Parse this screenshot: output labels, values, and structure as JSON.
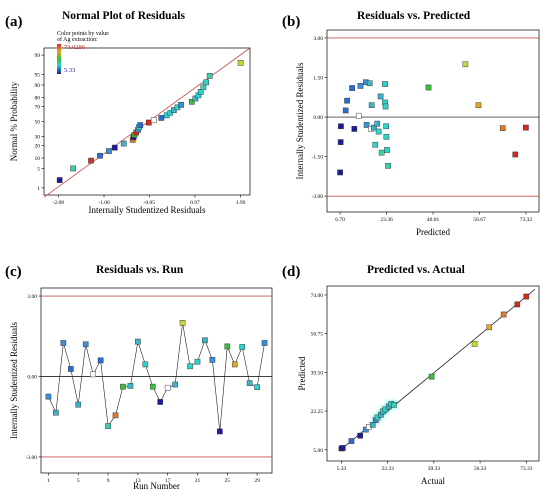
{
  "panels": [
    {
      "letter": "(a)",
      "title": "Normal Plot of Residuals"
    },
    {
      "letter": "(b)",
      "title": "Residuals vs. Predicted"
    },
    {
      "letter": "(c)",
      "title": "Residuals vs. Run"
    },
    {
      "letter": "(d)",
      "title": "Predicted vs. Actual"
    }
  ],
  "legend": {
    "title_line1": "Color points by value",
    "title_line2": "of Ag extraction:",
    "max_value": "73.0286",
    "min_value": "5.33"
  },
  "colors": {
    "low": "#1c1c99",
    "mid": "#2bd3c8",
    "green": "#3bbf3b",
    "high": "#d62a1d",
    "reference_line": "#c0504d"
  },
  "chart_data": [
    {
      "type": "scatter",
      "title": "Normal Plot of Residuals",
      "xlabel": "Internally Studentized Residuals",
      "ylabel": "Normal % Probability",
      "xlim": [
        -2.4,
        2.2
      ],
      "x_ticks": [
        "-2.08",
        "-1.06",
        "-0.05",
        "0.97",
        "1.99"
      ],
      "y_ticks": [
        "1",
        "5",
        "10",
        "20",
        "30",
        "50",
        "70",
        "80",
        "90",
        "95",
        "99"
      ],
      "fit_line": [
        [
          -2.4,
          0.4
        ],
        [
          2.2,
          99.5
        ]
      ],
      "points": [
        {
          "x": -2.05,
          "y": 2,
          "c": "#1c1c99"
        },
        {
          "x": -1.75,
          "y": 5,
          "c": "#3ccfae"
        },
        {
          "x": -1.35,
          "y": 8.5,
          "c": "#c23a2a"
        },
        {
          "x": -1.15,
          "y": 11.5,
          "c": "#2a6bd6"
        },
        {
          "x": -0.95,
          "y": 15,
          "c": "#3a8fd6"
        },
        {
          "x": -0.82,
          "y": 18,
          "c": "#1c1c99"
        },
        {
          "x": -0.62,
          "y": 22,
          "c": "#3bb3c8"
        },
        {
          "x": -0.42,
          "y": 26,
          "c": "#e07a2a"
        },
        {
          "x": -0.4,
          "y": 29,
          "c": "#1c1c99"
        },
        {
          "x": -0.38,
          "y": 32,
          "c": "#3bbf3b"
        },
        {
          "x": -0.34,
          "y": 35,
          "c": "#d62a1d"
        },
        {
          "x": -0.3,
          "y": 38.5,
          "c": "#3a8fd6"
        },
        {
          "x": -0.28,
          "y": 42,
          "c": "#2bd3c8"
        },
        {
          "x": -0.25,
          "y": 45,
          "c": "#2a6bd6"
        },
        {
          "x": -0.06,
          "y": 48.5,
          "c": "#d62a1d"
        },
        {
          "x": 0.05,
          "y": 52,
          "c": "#ffffff"
        },
        {
          "x": 0.22,
          "y": 55,
          "c": "#2a6bd6"
        },
        {
          "x": 0.34,
          "y": 58.5,
          "c": "#2bd3c8"
        },
        {
          "x": 0.42,
          "y": 62,
          "c": "#2bd3c8"
        },
        {
          "x": 0.5,
          "y": 65.5,
          "c": "#3bb3c8"
        },
        {
          "x": 0.58,
          "y": 69,
          "c": "#2bd3c8"
        },
        {
          "x": 0.66,
          "y": 72,
          "c": "#3a8fd6"
        },
        {
          "x": 0.9,
          "y": 75.5,
          "c": "#3bbf3b"
        },
        {
          "x": 0.98,
          "y": 79,
          "c": "#3bb3c8"
        },
        {
          "x": 1.05,
          "y": 82,
          "c": "#2bd3c8"
        },
        {
          "x": 1.1,
          "y": 85,
          "c": "#2bd3c8"
        },
        {
          "x": 1.16,
          "y": 88.5,
          "c": "#3ccfae"
        },
        {
          "x": 1.22,
          "y": 91.5,
          "c": "#2bd3c8"
        },
        {
          "x": 1.3,
          "y": 94.5,
          "c": "#3ccfae"
        },
        {
          "x": 1.99,
          "y": 98,
          "c": "#c8d63a"
        }
      ]
    },
    {
      "type": "scatter",
      "title": "Residuals vs. Predicted",
      "xlabel": "Predicted",
      "ylabel": "Internally Studentized Residuals",
      "xlim": [
        2,
        78
      ],
      "ylim": [
        -3.6,
        3.3
      ],
      "x_ticks": [
        6.7,
        23.36,
        40.01,
        56.67,
        73.32
      ],
      "y_ticks": [
        -3.0,
        -1.5,
        0.0,
        1.5,
        3.0
      ],
      "limit_lines": [
        3.0,
        -3.0
      ],
      "points": [
        {
          "x": 6.7,
          "y": -2.1,
          "c": "#1c1c99"
        },
        {
          "x": 6.9,
          "y": -0.95,
          "c": "#1c1c99"
        },
        {
          "x": 7.0,
          "y": -0.35,
          "c": "#1c1c99"
        },
        {
          "x": 8.7,
          "y": 0.25,
          "c": "#2a6bd6"
        },
        {
          "x": 9.2,
          "y": 0.62,
          "c": "#2a6bd6"
        },
        {
          "x": 11.0,
          "y": 1.1,
          "c": "#2a6bd6"
        },
        {
          "x": 11.8,
          "y": -0.45,
          "c": "#1c1c99"
        },
        {
          "x": 13.4,
          "y": 0.05,
          "c": "#ffffff"
        },
        {
          "x": 14.0,
          "y": 1.18,
          "c": "#3a8fd6"
        },
        {
          "x": 15.9,
          "y": 1.32,
          "c": "#3a8fd6"
        },
        {
          "x": 16.2,
          "y": -0.3,
          "c": "#3a8fd6"
        },
        {
          "x": 17.3,
          "y": 1.28,
          "c": "#3bb3c8"
        },
        {
          "x": 17.8,
          "y": -0.45,
          "c": "#ffffff"
        },
        {
          "x": 18.0,
          "y": 0.45,
          "c": "#3bb3c8"
        },
        {
          "x": 18.8,
          "y": -0.4,
          "c": "#3bb3c8"
        },
        {
          "x": 19.3,
          "y": -1.05,
          "c": "#2bd3c8"
        },
        {
          "x": 20.0,
          "y": -0.25,
          "c": "#3bb3c8"
        },
        {
          "x": 20.5,
          "y": -0.55,
          "c": "#2bd3c8"
        },
        {
          "x": 21.2,
          "y": 0.78,
          "c": "#3bb3c8"
        },
        {
          "x": 21.6,
          "y": -1.35,
          "c": "#3ccfae"
        },
        {
          "x": 22.8,
          "y": 1.25,
          "c": "#2bd3c8"
        },
        {
          "x": 22.8,
          "y": 0.55,
          "c": "#2bd3c8"
        },
        {
          "x": 23.0,
          "y": 0.4,
          "c": "#2bd3c8"
        },
        {
          "x": 23.2,
          "y": -0.35,
          "c": "#2bd3c8"
        },
        {
          "x": 23.3,
          "y": -0.75,
          "c": "#2bd3c8"
        },
        {
          "x": 23.5,
          "y": -1.25,
          "c": "#2bd3c8"
        },
        {
          "x": 23.9,
          "y": -1.85,
          "c": "#3ccfae"
        },
        {
          "x": 38.4,
          "y": 1.12,
          "c": "#3bbf3b"
        },
        {
          "x": 51.6,
          "y": 2.0,
          "c": "#c8d63a"
        },
        {
          "x": 56.3,
          "y": 0.45,
          "c": "#e0a82a"
        },
        {
          "x": 65.0,
          "y": -0.42,
          "c": "#e07a2a"
        },
        {
          "x": 69.5,
          "y": -1.42,
          "c": "#d62a1d"
        },
        {
          "x": 73.3,
          "y": -0.4,
          "c": "#d62a1d"
        }
      ]
    },
    {
      "type": "line",
      "title": "Residuals vs. Run",
      "xlabel": "Run Number",
      "ylabel": "Internally Studentized Residuals",
      "xlim": [
        0,
        31
      ],
      "ylim": [
        -3.6,
        3.3
      ],
      "x_ticks": [
        1,
        5,
        9,
        13,
        17,
        21,
        25,
        29
      ],
      "y_ticks": [
        -3.0,
        0.0,
        3.0
      ],
      "limit_lines": [
        3.0,
        -3.0
      ],
      "points": [
        {
          "x": 1,
          "y": -0.75,
          "c": "#3a8fd6"
        },
        {
          "x": 2,
          "y": -1.35,
          "c": "#3bb3c8"
        },
        {
          "x": 3,
          "y": 1.25,
          "c": "#3a8fd6"
        },
        {
          "x": 4,
          "y": 0.28,
          "c": "#2a6bd6"
        },
        {
          "x": 5,
          "y": -1.05,
          "c": "#3bb3c8"
        },
        {
          "x": 6,
          "y": 1.2,
          "c": "#3a8fd6"
        },
        {
          "x": 7,
          "y": 0.08,
          "c": "#ffffff"
        },
        {
          "x": 8,
          "y": 0.6,
          "c": "#2a6bd6"
        },
        {
          "x": 9,
          "y": -1.85,
          "c": "#3ccfae"
        },
        {
          "x": 10,
          "y": -1.45,
          "c": "#e07a2a"
        },
        {
          "x": 11,
          "y": -0.38,
          "c": "#3bbf3b"
        },
        {
          "x": 12,
          "y": -0.35,
          "c": "#3bb3c8"
        },
        {
          "x": 13,
          "y": 1.3,
          "c": "#3bb3c8"
        },
        {
          "x": 14,
          "y": 0.45,
          "c": "#2bd3c8"
        },
        {
          "x": 15,
          "y": -0.38,
          "c": "#3bbf3b"
        },
        {
          "x": 16,
          "y": -0.95,
          "c": "#1c1c99"
        },
        {
          "x": 17,
          "y": -0.42,
          "c": "#ffffff"
        },
        {
          "x": 18,
          "y": -0.3,
          "c": "#3bb3c8"
        },
        {
          "x": 19,
          "y": 2.0,
          "c": "#c8d63a"
        },
        {
          "x": 20,
          "y": 0.38,
          "c": "#2bd3c8"
        },
        {
          "x": 21,
          "y": 0.55,
          "c": "#2bd3c8"
        },
        {
          "x": 22,
          "y": 1.35,
          "c": "#3bb3c8"
        },
        {
          "x": 23,
          "y": 0.62,
          "c": "#3a8fd6"
        },
        {
          "x": 24,
          "y": -2.05,
          "c": "#1c1c99"
        },
        {
          "x": 25,
          "y": 1.12,
          "c": "#3bbf3b"
        },
        {
          "x": 26,
          "y": 0.45,
          "c": "#e0a82a"
        },
        {
          "x": 27,
          "y": 1.1,
          "c": "#2bd3c8"
        },
        {
          "x": 28,
          "y": -0.25,
          "c": "#3bb3c8"
        },
        {
          "x": 29,
          "y": -0.4,
          "c": "#2bd3c8"
        },
        {
          "x": 30,
          "y": 1.25,
          "c": "#3a8fd6"
        }
      ]
    },
    {
      "type": "scatter",
      "title": "Predicted vs. Actual",
      "xlabel": "Actual",
      "ylabel": "Predicted",
      "xlim": [
        0,
        78
      ],
      "ylim": [
        0,
        78
      ],
      "x_ticks": [
        5.33,
        22.33,
        39.33,
        56.33,
        73.33
      ],
      "y_ticks": [
        5.0,
        22.25,
        39.5,
        56.75,
        74.0
      ],
      "fit_line": [
        [
          5.0,
          5.0
        ],
        [
          76.5,
          76.5
        ]
      ],
      "points": [
        {
          "x": 5.33,
          "y": 5.6,
          "c": "#1c1c99"
        },
        {
          "x": 5.8,
          "y": 5.8,
          "c": "#1c1c99"
        },
        {
          "x": 9.0,
          "y": 8.9,
          "c": "#2a6bd6"
        },
        {
          "x": 12.2,
          "y": 11.3,
          "c": "#1c1c99"
        },
        {
          "x": 14.3,
          "y": 14.0,
          "c": "#3a8fd6"
        },
        {
          "x": 15.4,
          "y": 15.2,
          "c": "#ffffff"
        },
        {
          "x": 16.8,
          "y": 16.1,
          "c": "#3bb3c8"
        },
        {
          "x": 17.9,
          "y": 18.2,
          "c": "#3a8fd6"
        },
        {
          "x": 18.6,
          "y": 19.4,
          "c": "#2bd3c8"
        },
        {
          "x": 19.8,
          "y": 20.6,
          "c": "#3bb3c8"
        },
        {
          "x": 20.6,
          "y": 22.1,
          "c": "#2bd3c8"
        },
        {
          "x": 21.5,
          "y": 23.0,
          "c": "#2bd3c8"
        },
        {
          "x": 22.7,
          "y": 24.3,
          "c": "#3bb3c8"
        },
        {
          "x": 23.6,
          "y": 25.5,
          "c": "#2bd3c8"
        },
        {
          "x": 24.6,
          "y": 25.0,
          "c": "#3ccfae"
        },
        {
          "x": 38.5,
          "y": 37.6,
          "c": "#3bbf3b"
        },
        {
          "x": 54.3,
          "y": 52.2,
          "c": "#c8d63a"
        },
        {
          "x": 59.7,
          "y": 59.6,
          "c": "#e0a82a"
        },
        {
          "x": 65.0,
          "y": 65.3,
          "c": "#e07a2a"
        },
        {
          "x": 70.0,
          "y": 69.8,
          "c": "#d62a1d"
        },
        {
          "x": 73.3,
          "y": 73.3,
          "c": "#d62a1d"
        }
      ]
    }
  ]
}
